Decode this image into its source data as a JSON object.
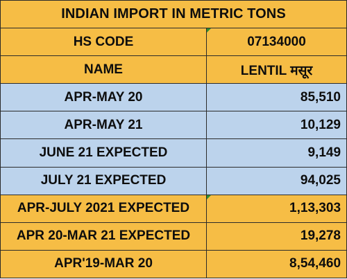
{
  "title": "INDIAN IMPORT IN METRIC TONS",
  "header_rows": [
    {
      "label": "HS CODE",
      "value": "07134000"
    },
    {
      "label": "NAME",
      "value": "LENTIL मसूर"
    }
  ],
  "rows": [
    {
      "label": "APR-MAY 20",
      "value": "85,510"
    },
    {
      "label": "APR-MAY 21",
      "value": "10,129"
    },
    {
      "label": "JUNE 21 EXPECTED",
      "value": "9,149"
    },
    {
      "label": "JULY 21 EXPECTED",
      "value": "94,025"
    },
    {
      "label": "APR-JULY 2021 EXPECTED",
      "value": "1,13,303"
    },
    {
      "label": "APR 20-MAR 21 EXPECTED",
      "value": "19,278"
    },
    {
      "label": "APR'19-MAR 20",
      "value": "8,54,460"
    }
  ],
  "colors": {
    "orange": "#f6bd45",
    "blue": "#bcd3ec",
    "border": "#2a2a2a",
    "comment_marker": "#2f8f2f"
  }
}
